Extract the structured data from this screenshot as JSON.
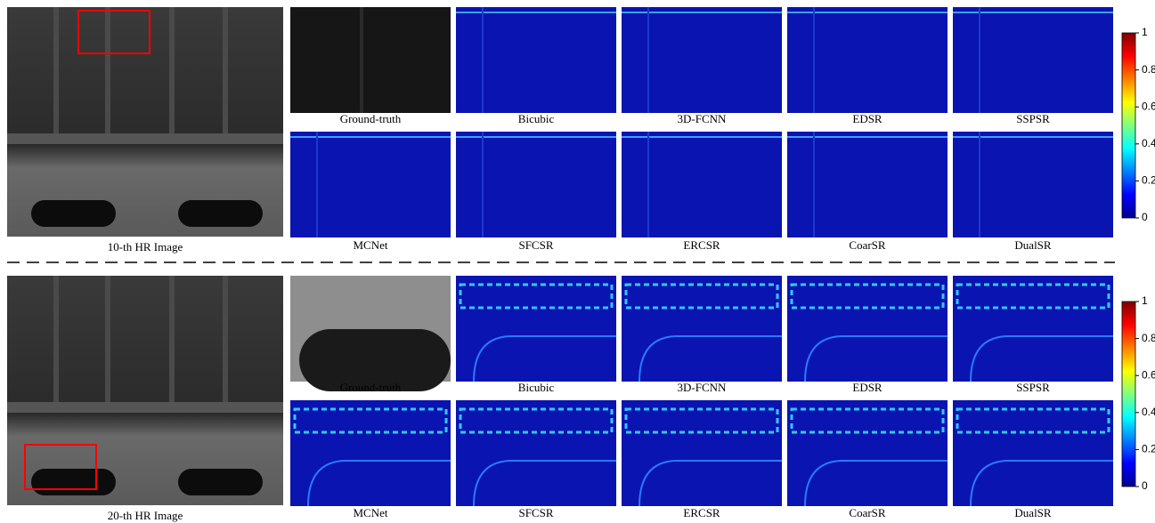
{
  "panels": [
    {
      "hr_label": "10-th HR Image",
      "rows": [
        [
          "Ground-truth",
          "Bicubic",
          "3D-FCNN",
          "EDSR",
          "SSPSR"
        ],
        [
          "MCNet",
          "SFCSR",
          "ERCSR",
          "CoarSR",
          "DualSR"
        ]
      ],
      "colorbar_ticks": [
        0,
        0.2,
        0.4,
        0.6,
        0.8,
        1
      ]
    },
    {
      "hr_label": "20-th HR Image",
      "rows": [
        [
          "Ground-truth",
          "Bicubic",
          "3D-FCNN",
          "EDSR",
          "SSPSR"
        ],
        [
          "MCNet",
          "SFCSR",
          "ERCSR",
          "CoarSR",
          "DualSR"
        ]
      ],
      "colorbar_ticks": [
        0,
        0.2,
        0.4,
        0.6,
        0.8,
        1
      ]
    }
  ]
}
